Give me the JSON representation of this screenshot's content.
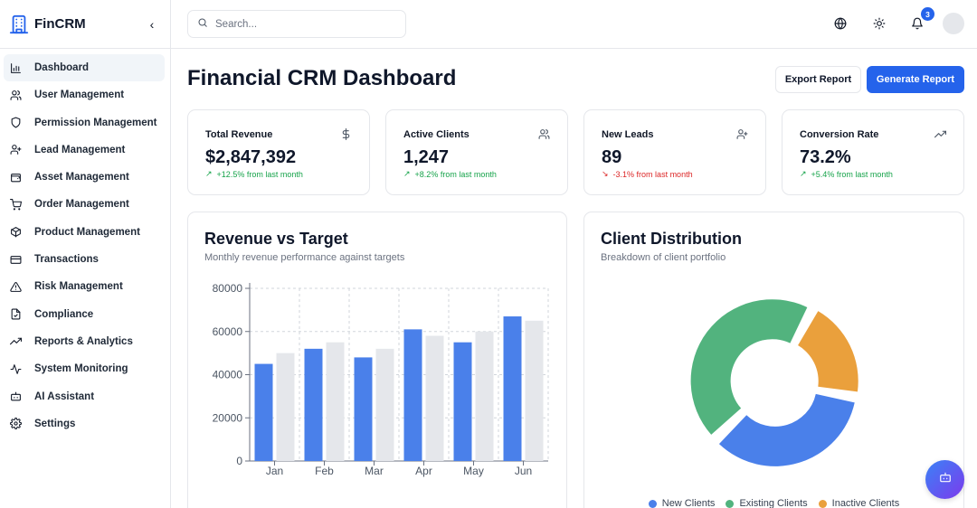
{
  "app": {
    "name": "FinCRM",
    "logo_icon": "building-icon",
    "collapse_icon": "chevron-left-icon"
  },
  "sidebar": {
    "items": [
      {
        "label": "Dashboard",
        "icon": "bar-chart-icon",
        "active": true
      },
      {
        "label": "User Management",
        "icon": "users-icon"
      },
      {
        "label": "Permission Management",
        "icon": "shield-icon"
      },
      {
        "label": "Lead Management",
        "icon": "user-plus-icon"
      },
      {
        "label": "Asset Management",
        "icon": "wallet-icon"
      },
      {
        "label": "Order Management",
        "icon": "cart-icon"
      },
      {
        "label": "Product Management",
        "icon": "package-icon"
      },
      {
        "label": "Transactions",
        "icon": "credit-card-icon"
      },
      {
        "label": "Risk Management",
        "icon": "alert-triangle-icon"
      },
      {
        "label": "Compliance",
        "icon": "file-check-icon"
      },
      {
        "label": "Reports & Analytics",
        "icon": "trending-up-icon"
      },
      {
        "label": "System Monitoring",
        "icon": "activity-icon"
      },
      {
        "label": "AI Assistant",
        "icon": "bot-icon"
      },
      {
        "label": "Settings",
        "icon": "gear-icon"
      }
    ]
  },
  "topbar": {
    "search_placeholder": "Search...",
    "notification_count": "3"
  },
  "main": {
    "title": "Financial CRM Dashboard",
    "export_label": "Export Report",
    "generate_label": "Generate Report"
  },
  "stats": [
    {
      "label": "Total Revenue",
      "value": "$2,847,392",
      "change": "+12.5% from last month",
      "trend": "up",
      "icon": "dollar-icon"
    },
    {
      "label": "Active Clients",
      "value": "1,247",
      "change": "+8.2% from last month",
      "trend": "up",
      "icon": "users-icon"
    },
    {
      "label": "New Leads",
      "value": "89",
      "change": "-3.1% from last month",
      "trend": "down",
      "icon": "user-plus-icon"
    },
    {
      "label": "Conversion Rate",
      "value": "73.2%",
      "change": "+5.4% from last month",
      "trend": "up",
      "icon": "trending-up-icon"
    }
  ],
  "revenue_card": {
    "title": "Revenue vs Target",
    "subtitle": "Monthly revenue performance against targets"
  },
  "distribution_card": {
    "title": "Client Distribution",
    "subtitle": "Breakdown of client portfolio"
  },
  "colors": {
    "accent": "#2563eb",
    "bar_revenue": "#4a80ea",
    "bar_target": "#e5e7eb",
    "new": "#4a80ea",
    "existing": "#52b37e",
    "inactive": "#eaa03c",
    "up": "#16a34a",
    "down": "#dc2626"
  },
  "chart_data": [
    {
      "type": "bar",
      "categories": [
        "Jan",
        "Feb",
        "Mar",
        "Apr",
        "May",
        "Jun"
      ],
      "series": [
        {
          "values": [
            45000,
            52000,
            48000,
            61000,
            55000,
            67000
          ]
        },
        {
          "values": [
            50000,
            55000,
            52000,
            58000,
            60000,
            65000
          ]
        }
      ],
      "yticks": [
        "0",
        "20000",
        "40000",
        "60000",
        "80000"
      ],
      "ylim": [
        0,
        80000
      ],
      "grid": true
    },
    {
      "type": "pie",
      "donut": true,
      "labels": [
        "New Clients",
        "Existing Clients",
        "Inactive Clients"
      ],
      "values": [
        35,
        45,
        20
      ],
      "legend": "bottom"
    }
  ]
}
